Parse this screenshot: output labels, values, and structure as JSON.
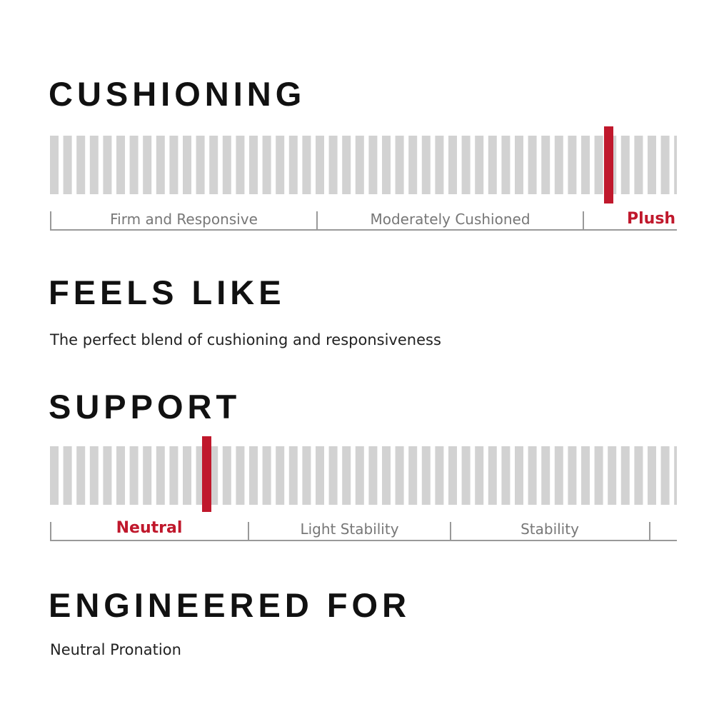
{
  "cushioning": {
    "title": "CUSHIONING",
    "scale": [
      "Firm and Responsive",
      "Moderately Cushioned",
      "Plush"
    ]
  },
  "feels_like": {
    "title": "FEELS LIKE",
    "text": "The perfect blend of cushioning and responsiveness"
  },
  "support": {
    "title": "SUPPORT",
    "scale": [
      "Neutral",
      "Light Stability",
      "Stability"
    ]
  },
  "engineered_for": {
    "title": "ENGINEERED FOR",
    "text": "Neutral Pronation"
  }
}
